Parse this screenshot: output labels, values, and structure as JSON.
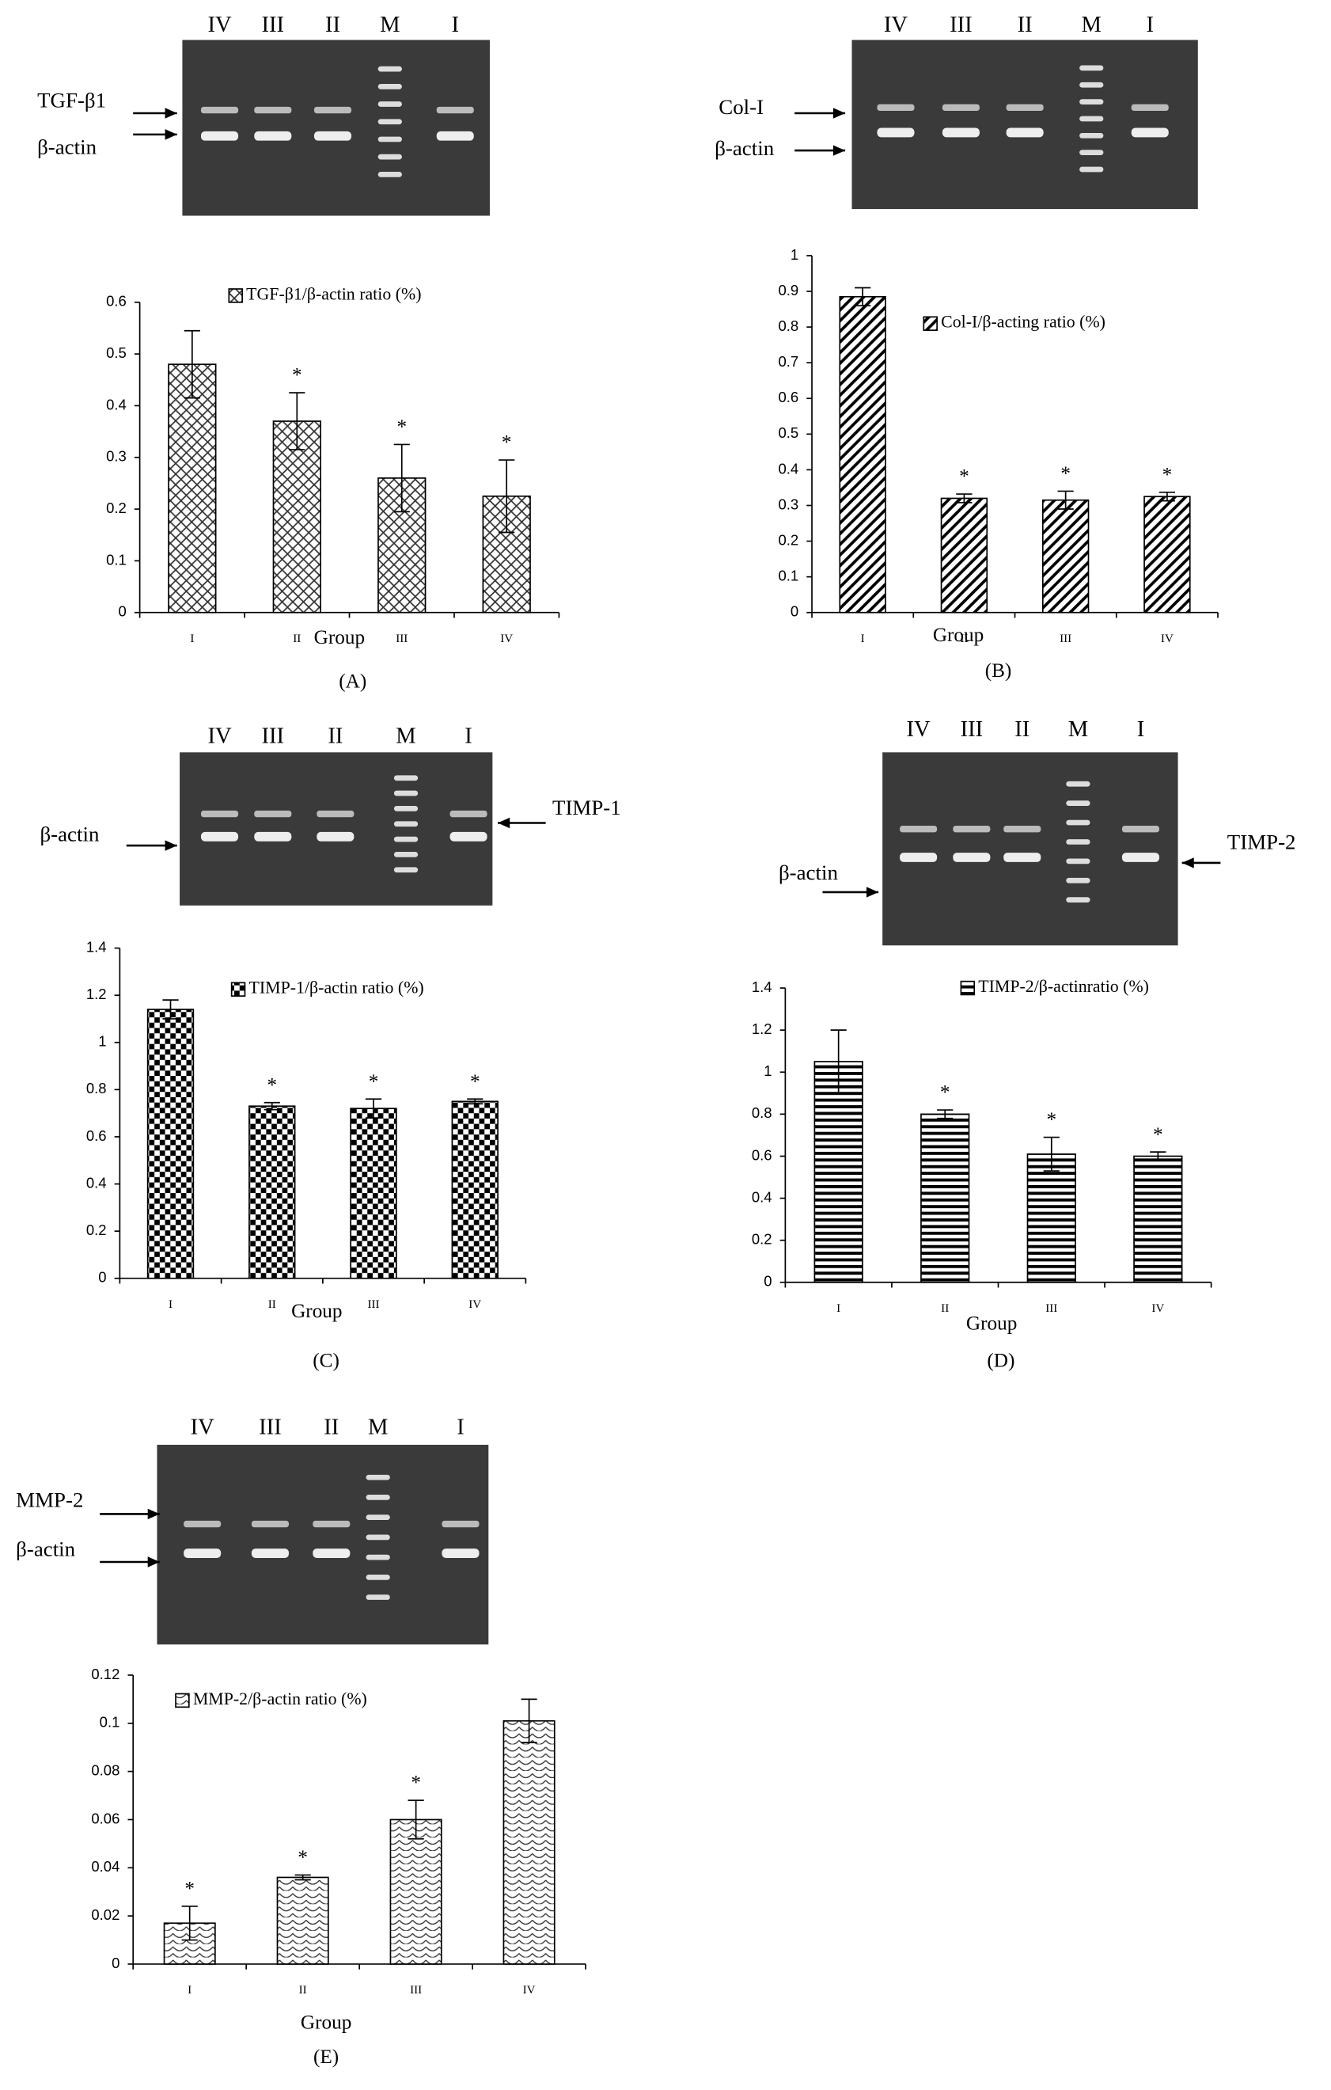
{
  "chart_data": [
    {
      "type": "bar",
      "pattern": "crosshatch",
      "legend": "TGF-β1/β-actin ratio (%)",
      "categories": [
        "I",
        "II",
        "III",
        "IV"
      ],
      "values": [
        0.48,
        0.37,
        0.26,
        0.225
      ],
      "errors": [
        0.065,
        0.055,
        0.065,
        0.07
      ],
      "significance": [
        null,
        "*",
        "*",
        "*"
      ],
      "ylim": [
        0,
        0.6
      ],
      "yticks": [
        0,
        0.1,
        0.2,
        0.3,
        0.4,
        0.5,
        0.6
      ],
      "xlabel": "Group",
      "panel_label": "(A)",
      "gel": {
        "lanes": [
          "IV",
          "III",
          "II",
          "M",
          "I"
        ],
        "markers": [
          "TGF-β1",
          "β-actin"
        ]
      }
    },
    {
      "type": "bar",
      "pattern": "diagonal",
      "legend": "Col-I/β-acting ratio (%)",
      "categories": [
        "I",
        "II",
        "III",
        "IV"
      ],
      "values": [
        0.885,
        0.32,
        0.315,
        0.325
      ],
      "errors": [
        0.025,
        0.012,
        0.025,
        0.012
      ],
      "significance": [
        null,
        "*",
        "*",
        "*"
      ],
      "ylim": [
        0,
        1
      ],
      "yticks": [
        0,
        0.1,
        0.2,
        0.3,
        0.4,
        0.5,
        0.6,
        0.7,
        0.8,
        0.9,
        1
      ],
      "xlabel": "Group",
      "panel_label": "(B)",
      "gel": {
        "lanes": [
          "IV",
          "III",
          "II",
          "M",
          "I"
        ],
        "markers": [
          "Col-I",
          "β-actin"
        ]
      }
    },
    {
      "type": "bar",
      "pattern": "checker",
      "legend": "TIMP-1/β-actin ratio (%)",
      "categories": [
        "I",
        "II",
        "III",
        "IV"
      ],
      "values": [
        1.14,
        0.73,
        0.72,
        0.75
      ],
      "errors": [
        0.04,
        0.015,
        0.04,
        0.01
      ],
      "significance": [
        null,
        "*",
        "*",
        "*"
      ],
      "ylim": [
        0,
        1.4
      ],
      "yticks": [
        0,
        0.2,
        0.4,
        0.6,
        0.8,
        1,
        1.2,
        1.4
      ],
      "xlabel": "Group",
      "panel_label": "(C)",
      "gel": {
        "lanes": [
          "IV",
          "III",
          "II",
          "M",
          "I"
        ],
        "markers": [
          "β-actin",
          "TIMP-1"
        ]
      }
    },
    {
      "type": "bar",
      "pattern": "hstripe",
      "legend": "TIMP-2/β-actinratio (%)",
      "categories": [
        "I",
        "II",
        "III",
        "IV"
      ],
      "values": [
        1.05,
        0.8,
        0.61,
        0.6
      ],
      "errors": [
        0.15,
        0.02,
        0.08,
        0.02
      ],
      "significance": [
        null,
        "*",
        "*",
        "*"
      ],
      "ylim": [
        0,
        1.4
      ],
      "yticks": [
        0,
        0.2,
        0.4,
        0.6,
        0.8,
        1,
        1.2,
        1.4
      ],
      "xlabel": "Group",
      "panel_label": "(D)",
      "gel": {
        "lanes": [
          "IV",
          "III",
          "II",
          "M",
          "I"
        ],
        "markers": [
          "β-actin",
          "TIMP-2"
        ]
      }
    },
    {
      "type": "bar",
      "pattern": "wave",
      "legend": "MMP-2/β-actin ratio (%)",
      "categories": [
        "I",
        "II",
        "III",
        "IV"
      ],
      "values": [
        0.017,
        0.036,
        0.06,
        0.101
      ],
      "errors": [
        0.007,
        0.001,
        0.008,
        0.009
      ],
      "significance": [
        "*",
        "*",
        "*",
        null
      ],
      "ylim": [
        0,
        0.12
      ],
      "yticks": [
        0,
        0.02,
        0.04,
        0.06,
        0.08,
        0.1,
        0.12
      ],
      "xlabel": "Group",
      "panel_label": "(E)",
      "gel": {
        "lanes": [
          "IV",
          "III",
          "II",
          "M",
          "I"
        ],
        "markers": [
          "MMP-2",
          "β-actin"
        ]
      }
    }
  ]
}
